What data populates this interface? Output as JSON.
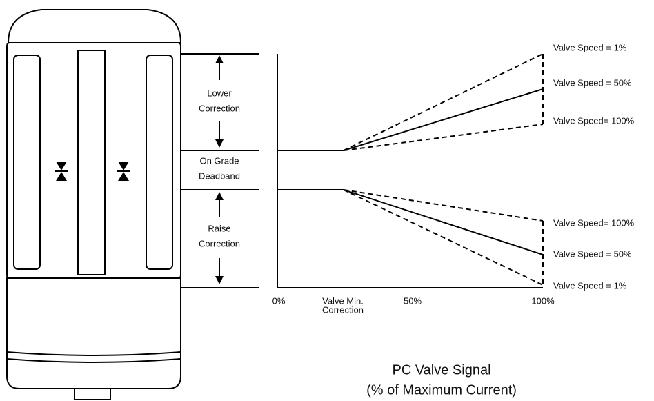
{
  "zone_labels": [
    {
      "lines": [
        "Lower",
        "Correction"
      ]
    },
    {
      "lines": [
        "On Grade",
        "Deadband"
      ]
    },
    {
      "lines": [
        "Raise",
        "Correction"
      ]
    }
  ],
  "speed_labels": [
    "Valve Speed = 1%",
    "Valve Speed = 50%",
    "Valve Speed= 100%",
    "Valve Speed= 100%",
    "Valve Speed = 50%",
    "Valve Speed = 1%"
  ],
  "x_axis_labels": [
    {
      "lines": [
        "0%"
      ]
    },
    {
      "lines": [
        "Valve Min.",
        "Correction"
      ]
    },
    {
      "lines": [
        "50%"
      ]
    },
    {
      "lines": [
        "100%"
      ]
    }
  ],
  "x_axis_title": [
    "PC Valve Signal",
    "(% of Maximum Current)"
  ]
}
